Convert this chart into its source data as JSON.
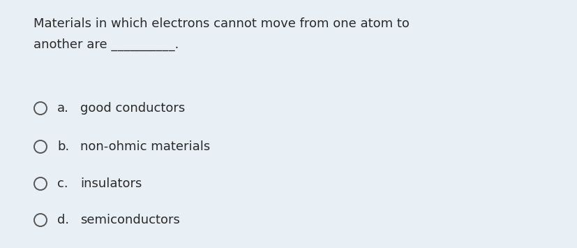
{
  "background_color": "#e8f0f5",
  "question_line1": "Materials in which electrons cannot move from one atom to",
  "question_line2": "another are __________.",
  "options": [
    {
      "label": "a.",
      "text": "good conductors"
    },
    {
      "label": "b.",
      "text": "non-ohmic materials"
    },
    {
      "label": "c.",
      "text": "insulators"
    },
    {
      "label": "d.",
      "text": "semiconductors"
    }
  ],
  "text_color": "#2a2a2a",
  "circle_color": "#555555",
  "font_size_question": 13.0,
  "font_size_options": 13.0
}
